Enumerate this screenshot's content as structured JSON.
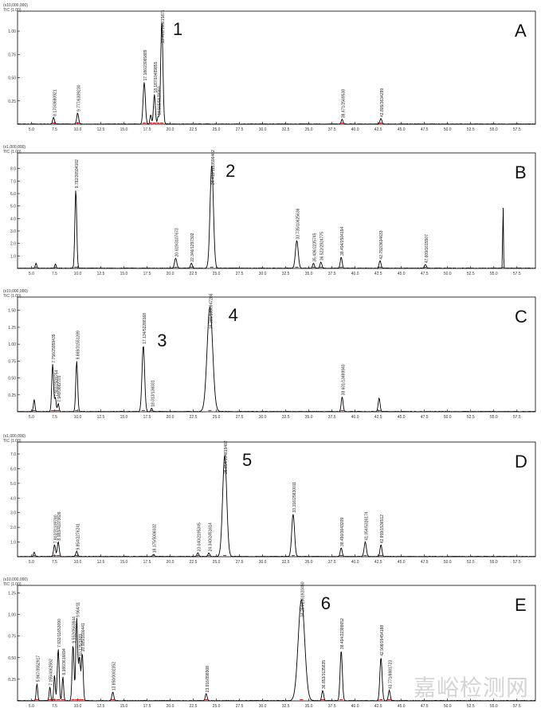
{
  "colors": {
    "trace": "#000000",
    "baseline_marker": "#d62728",
    "label_blue": "#1f3fa8",
    "axis": "#000000",
    "watermark": "#d6d6d6"
  },
  "watermark": "嘉峪检测网",
  "chart_data": [
    {
      "type": "line",
      "panel": "A",
      "scale_text": [
        "(x10,000,000)",
        "TIC (1.00)"
      ],
      "x_ticks": [
        "5.0",
        "7.5",
        "10.0",
        "12.5",
        "15.0",
        "17.5",
        "20.0",
        "22.5",
        "25.0",
        "27.5",
        "30.0",
        "32.5",
        "35.0",
        "37.5",
        "40.0",
        "42.5",
        "45.0",
        "47.5",
        "50.0",
        "52.5",
        "55.0",
        "57.5"
      ],
      "xlim": [
        3.5,
        59.5
      ],
      "y_ticks": [
        "0.25",
        "0.50",
        "0.75",
        "1.00"
      ],
      "y_tick_values": [
        0.25,
        0.5,
        0.75,
        1.0
      ],
      "ylim": [
        0,
        1.18
      ],
      "peak_number": "1",
      "number_at": 20.3,
      "peaks": [
        {
          "rt": 7.4,
          "h": 0.07,
          "w": 0.1
        },
        {
          "rt": 10.0,
          "h": 0.12,
          "w": 0.1
        },
        {
          "rt": 17.2,
          "h": 0.45,
          "w": 0.12
        },
        {
          "rt": 17.9,
          "h": 0.1,
          "w": 0.08
        },
        {
          "rt": 18.3,
          "h": 0.32,
          "w": 0.1
        },
        {
          "rt": 18.7,
          "h": 0.08,
          "w": 0.08
        },
        {
          "rt": 19.1,
          "h": 1.1,
          "w": 0.12
        },
        {
          "rt": 38.6,
          "h": 0.05,
          "w": 0.1
        },
        {
          "rt": 42.8,
          "h": 0.06,
          "w": 0.1
        }
      ],
      "labels": [
        {
          "rt": 7.4,
          "text": "8.170/3680921"
        },
        {
          "rt": 10.0,
          "text": "9.777/6309230"
        },
        {
          "rt": 17.2,
          "text": "17.186/23065889"
        },
        {
          "rt": 18.3,
          "text": "18.187/10489855"
        },
        {
          "rt": 18.7,
          "text": "18.565/5628360"
        },
        {
          "rt": 19.1,
          "text": "19.402/168215871"
        },
        {
          "rt": 38.6,
          "text": "38.471/2569538"
        },
        {
          "rt": 42.8,
          "text": "42.805/3634299"
        }
      ]
    },
    {
      "type": "line",
      "panel": "B",
      "scale_text": [
        "(x1,000,000)",
        "TIC (1.00)"
      ],
      "x_ticks": [
        "5.0",
        "7.5",
        "10.0",
        "12.5",
        "15.0",
        "17.5",
        "20.0",
        "22.5",
        "25.0",
        "27.5",
        "30.0",
        "32.5",
        "35.0",
        "37.5",
        "40.0",
        "42.5",
        "45.0",
        "47.5",
        "50.0",
        "52.5",
        "55.0",
        "57.5"
      ],
      "xlim": [
        3.5,
        59.5
      ],
      "y_ticks": [
        "1.0",
        "2.0",
        "3.0",
        "4.0",
        "5.0",
        "6.0",
        "7.0",
        "8.0"
      ],
      "y_tick_values": [
        1,
        2,
        3,
        4,
        5,
        6,
        7,
        8
      ],
      "ylim": [
        0,
        9.0
      ],
      "peak_number": "2",
      "number_at": 26.0,
      "peaks": [
        {
          "rt": 5.5,
          "h": 0.4,
          "w": 0.08
        },
        {
          "rt": 7.6,
          "h": 0.35,
          "w": 0.08
        },
        {
          "rt": 9.8,
          "h": 6.3,
          "w": 0.1
        },
        {
          "rt": 20.6,
          "h": 0.8,
          "w": 0.12
        },
        {
          "rt": 22.3,
          "h": 0.4,
          "w": 0.1
        },
        {
          "rt": 24.5,
          "h": 8.3,
          "w": 0.18
        },
        {
          "rt": 33.7,
          "h": 2.2,
          "w": 0.15
        },
        {
          "rt": 35.5,
          "h": 0.4,
          "w": 0.1
        },
        {
          "rt": 36.3,
          "h": 0.5,
          "w": 0.1
        },
        {
          "rt": 38.5,
          "h": 0.9,
          "w": 0.1
        },
        {
          "rt": 42.7,
          "h": 0.6,
          "w": 0.1
        },
        {
          "rt": 47.6,
          "h": 0.3,
          "w": 0.1
        },
        {
          "rt": 56.0,
          "h": 5.2,
          "w": 0.04
        }
      ],
      "labels": [
        {
          "rt": 9.8,
          "text": "9.792/26594102"
        },
        {
          "rt": 20.6,
          "text": "20.619/3107673"
        },
        {
          "rt": 22.3,
          "text": "22.346/1297302"
        },
        {
          "rt": 24.5,
          "text": "24.412/1113596402"
        },
        {
          "rt": 33.7,
          "text": "33.735/10625636"
        },
        {
          "rt": 35.5,
          "text": "35.436/2235745"
        },
        {
          "rt": 36.3,
          "text": "36.522/2924775"
        },
        {
          "rt": 38.5,
          "text": "38.494/2504194"
        },
        {
          "rt": 42.7,
          "text": "42.792/3634633"
        },
        {
          "rt": 47.6,
          "text": "47.609/1615507"
        }
      ]
    },
    {
      "type": "line",
      "panel": "C",
      "scale_text": [
        "(x10,000,000)",
        "TIC (1.00)"
      ],
      "x_ticks": [
        "5.0",
        "7.5",
        "10.0",
        "12.5",
        "15.0",
        "17.5",
        "20.0",
        "22.5",
        "25.0",
        "27.5",
        "30.0",
        "32.5",
        "35.0",
        "37.5",
        "40.0",
        "42.5",
        "45.0",
        "47.5",
        "50.0",
        "52.5",
        "55.0",
        "57.5"
      ],
      "xlim": [
        3.5,
        59.5
      ],
      "y_ticks": [
        "0.25",
        "0.50",
        "0.75",
        "1.00",
        "1.25",
        "1.50"
      ],
      "y_tick_values": [
        0.25,
        0.5,
        0.75,
        1.0,
        1.25,
        1.5
      ],
      "ylim": [
        0,
        1.65
      ],
      "peak_number": "4",
      "number_at": 26.3,
      "number2": "3",
      "number2_at": 18.6,
      "peaks": [
        {
          "rt": 5.3,
          "h": 0.18,
          "w": 0.08
        },
        {
          "rt": 7.3,
          "h": 0.7,
          "w": 0.1
        },
        {
          "rt": 7.6,
          "h": 0.2,
          "w": 0.08
        },
        {
          "rt": 7.9,
          "h": 0.12,
          "w": 0.08
        },
        {
          "rt": 9.9,
          "h": 0.75,
          "w": 0.1
        },
        {
          "rt": 17.1,
          "h": 0.98,
          "w": 0.14
        },
        {
          "rt": 18.0,
          "h": 0.05,
          "w": 0.08
        },
        {
          "rt": 24.3,
          "h": 1.55,
          "w": 0.3
        },
        {
          "rt": 38.6,
          "h": 0.22,
          "w": 0.1
        },
        {
          "rt": 42.6,
          "h": 0.2,
          "w": 0.1
        }
      ],
      "labels": [
        {
          "rt": 7.3,
          "text": "7.756/25959439"
        },
        {
          "rt": 7.6,
          "text": "7.903/2509754"
        },
        {
          "rt": 7.9,
          "text": "7.949/3662701"
        },
        {
          "rt": 9.9,
          "text": "9.869/31551289"
        },
        {
          "rt": 17.1,
          "text": "17.134/52288168"
        },
        {
          "rt": 18.0,
          "text": "18.013/136031"
        },
        {
          "rt": 24.3,
          "text": "24.385/1390947286"
        },
        {
          "rt": 38.6,
          "text": "38.601/13489940"
        }
      ]
    },
    {
      "type": "line",
      "panel": "D",
      "scale_text": [
        "(x1,000,000)",
        "TIC (1.00)"
      ],
      "x_ticks": [
        "5.0",
        "7.5",
        "10.0",
        "12.5",
        "15.0",
        "17.5",
        "20.0",
        "22.5",
        "25.0",
        "27.5",
        "30.0",
        "32.5",
        "35.0",
        "37.5",
        "40.0",
        "42.5",
        "45.0",
        "47.5",
        "50.0",
        "52.5",
        "55.0",
        "57.5"
      ],
      "xlim": [
        3.5,
        59.5
      ],
      "y_ticks": [
        "1.0",
        "2.0",
        "3.0",
        "4.0",
        "5.0",
        "6.0",
        "7.0"
      ],
      "y_tick_values": [
        1,
        2,
        3,
        4,
        5,
        6,
        7
      ],
      "ylim": [
        0,
        7.6
      ],
      "peak_number": "5",
      "number_at": 27.8,
      "peaks": [
        {
          "rt": 5.3,
          "h": 0.3,
          "w": 0.08
        },
        {
          "rt": 7.5,
          "h": 0.8,
          "w": 0.1
        },
        {
          "rt": 7.9,
          "h": 1.0,
          "w": 0.1
        },
        {
          "rt": 9.9,
          "h": 0.35,
          "w": 0.1
        },
        {
          "rt": 18.2,
          "h": 0.15,
          "w": 0.1
        },
        {
          "rt": 23.0,
          "h": 0.25,
          "w": 0.1
        },
        {
          "rt": 24.2,
          "h": 0.25,
          "w": 0.1
        },
        {
          "rt": 25.9,
          "h": 6.9,
          "w": 0.22
        },
        {
          "rt": 33.3,
          "h": 2.9,
          "w": 0.15
        },
        {
          "rt": 38.5,
          "h": 0.6,
          "w": 0.1
        },
        {
          "rt": 41.1,
          "h": 1.0,
          "w": 0.12
        },
        {
          "rt": 42.8,
          "h": 0.8,
          "w": 0.1
        }
      ],
      "labels": [
        {
          "rt": 7.5,
          "text": "7.802/31109780"
        },
        {
          "rt": 7.9,
          "text": "8.083/41073626"
        },
        {
          "rt": 9.9,
          "text": "9.854/2276241"
        },
        {
          "rt": 18.2,
          "text": "18.175/5006032"
        },
        {
          "rt": 23.0,
          "text": "23.040/2195345"
        },
        {
          "rt": 24.2,
          "text": "24.340/2451614"
        },
        {
          "rt": 25.9,
          "text": "25.854/104819402"
        },
        {
          "rt": 33.3,
          "text": "33.316/25830011"
        },
        {
          "rt": 38.5,
          "text": "38.490/3643209"
        },
        {
          "rt": 41.1,
          "text": "41.054/5326174"
        },
        {
          "rt": 42.8,
          "text": "42.859/1536512"
        }
      ]
    },
    {
      "type": "line",
      "panel": "E",
      "scale_text": [
        "(x10,000,000)",
        "TIC (1.00)"
      ],
      "x_ticks": [
        "5.0",
        "7.5",
        "10.0",
        "12.5",
        "15.0",
        "17.5",
        "20.0",
        "22.5",
        "25.0",
        "27.5",
        "30.0",
        "32.5",
        "35.0",
        "37.5",
        "40.0",
        "42.5",
        "45.0",
        "47.5",
        "50.0",
        "52.5",
        "55.0",
        "57.5"
      ],
      "xlim": [
        3.5,
        59.5
      ],
      "y_ticks": [
        "0.25",
        "0.50",
        "0.75",
        "1.00",
        "1.25"
      ],
      "y_tick_values": [
        0.25,
        0.5,
        0.75,
        1.0,
        1.25
      ],
      "ylim": [
        0,
        1.3
      ],
      "peak_number": "6",
      "number_at": 36.3,
      "peaks": [
        {
          "rt": 5.6,
          "h": 0.2,
          "w": 0.08
        },
        {
          "rt": 7.0,
          "h": 0.16,
          "w": 0.08
        },
        {
          "rt": 7.5,
          "h": 0.3,
          "w": 0.08
        },
        {
          "rt": 7.9,
          "h": 0.6,
          "w": 0.1
        },
        {
          "rt": 8.4,
          "h": 0.28,
          "w": 0.08
        },
        {
          "rt": 9.5,
          "h": 0.65,
          "w": 0.1
        },
        {
          "rt": 9.9,
          "h": 0.95,
          "w": 0.1
        },
        {
          "rt": 10.2,
          "h": 0.5,
          "w": 0.1
        },
        {
          "rt": 10.5,
          "h": 0.55,
          "w": 0.1
        },
        {
          "rt": 13.8,
          "h": 0.1,
          "w": 0.1
        },
        {
          "rt": 23.9,
          "h": 0.08,
          "w": 0.1
        },
        {
          "rt": 34.2,
          "h": 1.17,
          "w": 0.35
        },
        {
          "rt": 36.5,
          "h": 0.12,
          "w": 0.1
        },
        {
          "rt": 38.5,
          "h": 0.58,
          "w": 0.12
        },
        {
          "rt": 42.8,
          "h": 0.5,
          "w": 0.12
        },
        {
          "rt": 43.7,
          "h": 0.12,
          "w": 0.1
        }
      ],
      "labels": [
        {
          "rt": 5.6,
          "text": "5.967/3552917"
        },
        {
          "rt": 7.0,
          "text": "7.155/4062592"
        },
        {
          "rt": 7.9,
          "text": "7.932/11653090"
        },
        {
          "rt": 8.4,
          "text": "8.386/3616694"
        },
        {
          "rt": 9.5,
          "text": "9.552/0563844"
        },
        {
          "rt": 9.9,
          "text": "9.964/11"
        },
        {
          "rt": 10.2,
          "text": "10.125/1669"
        },
        {
          "rt": 10.5,
          "text": "10.085/1600441"
        },
        {
          "rt": 13.8,
          "text": "13.850/0002352"
        },
        {
          "rt": 23.9,
          "text": "23.916/898908"
        },
        {
          "rt": 34.2,
          "text": "34.294/2361920490"
        },
        {
          "rt": 36.5,
          "text": "36.853/3135835"
        },
        {
          "rt": 38.5,
          "text": "38.494/22388652"
        },
        {
          "rt": 42.8,
          "text": "42.908/29454188"
        },
        {
          "rt": 43.7,
          "text": "43.771/8881723"
        }
      ]
    }
  ]
}
